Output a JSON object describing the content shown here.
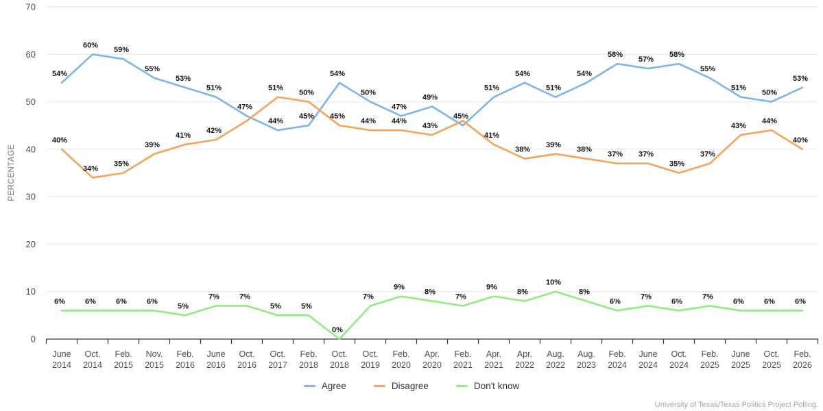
{
  "chart_data": {
    "type": "line",
    "title": "",
    "xlabel": "",
    "ylabel": "PERCENTAGE",
    "ylim": [
      0,
      70
    ],
    "yticks": [
      0,
      10,
      20,
      30,
      40,
      50,
      60,
      70
    ],
    "grid": true,
    "legend_position": "bottom",
    "categories": [
      [
        "June",
        "2014"
      ],
      [
        "Oct.",
        "2014"
      ],
      [
        "Feb.",
        "2015"
      ],
      [
        "Nov.",
        "2015"
      ],
      [
        "Feb.",
        "2016"
      ],
      [
        "June",
        "2016"
      ],
      [
        "Oct.",
        "2016"
      ],
      [
        "Oct.",
        "2017"
      ],
      [
        "Feb.",
        "2018"
      ],
      [
        "Oct.",
        "2018"
      ],
      [
        "Oct.",
        "2019"
      ],
      [
        "Feb.",
        "2020"
      ],
      [
        "Apr.",
        "2020"
      ],
      [
        "Feb.",
        "2021"
      ],
      [
        "Apr.",
        "2021"
      ],
      [
        "Apr.",
        "2022"
      ],
      [
        "Aug.",
        "2022"
      ],
      [
        "Aug.",
        "2023"
      ],
      [
        "Feb.",
        "2024"
      ],
      [
        "June",
        "2024"
      ],
      [
        "Oct.",
        "2024"
      ],
      [
        "Feb.",
        "2025"
      ],
      [
        "June",
        "2025"
      ],
      [
        "Oct.",
        "2025"
      ],
      [
        "Feb.",
        "2026"
      ]
    ],
    "series": [
      {
        "name": "Agree",
        "color": "#7cb5ec",
        "values": [
          54,
          60,
          59,
          55,
          53,
          51,
          47,
          44,
          45,
          54,
          50,
          47,
          49,
          45,
          51,
          54,
          51,
          54,
          58,
          57,
          58,
          55,
          51,
          50,
          53
        ],
        "labels": [
          "54%",
          "60%",
          "59%",
          "55%",
          "53%",
          "51%",
          "47%",
          "44%",
          "45%",
          "54%",
          "50%",
          "47%",
          "49%",
          "45%",
          "51%",
          "54%",
          "51%",
          "54%",
          "58%",
          "57%",
          "58%",
          "55%",
          "51%",
          "50%",
          "53%"
        ]
      },
      {
        "name": "Disagree",
        "color": "#f7a35c",
        "values": [
          40,
          34,
          35,
          39,
          41,
          42,
          46,
          51,
          50,
          45,
          44,
          44,
          43,
          46,
          41,
          38,
          39,
          38,
          37,
          37,
          35,
          37,
          43,
          44,
          40
        ],
        "labels": [
          "40%",
          "34%",
          "35%",
          "39%",
          "41%",
          "42%",
          "",
          "51%",
          "50%",
          "45%",
          "44%",
          "44%",
          "43%",
          "",
          "41%",
          "38%",
          "39%",
          "38%",
          "37%",
          "37%",
          "35%",
          "37%",
          "43%",
          "44%",
          "40%"
        ]
      },
      {
        "name": "Don't know",
        "color": "#90ed7d",
        "values": [
          6,
          6,
          6,
          6,
          5,
          7,
          7,
          5,
          5,
          0,
          7,
          9,
          8,
          7,
          9,
          8,
          10,
          8,
          6,
          7,
          6,
          7,
          6,
          6,
          6
        ],
        "labels": [
          "6%",
          "6%",
          "6%",
          "6%",
          "5%",
          "7%",
          "7%",
          "5%",
          "5%",
          "0%",
          "7%",
          "9%",
          "8%",
          "7%",
          "9%",
          "8%",
          "10%",
          "8%",
          "6%",
          "7%",
          "6%",
          "7%",
          "6%",
          "6%",
          "6%"
        ]
      }
    ]
  },
  "footer": {
    "source": "University of Texas/Texas Politics Project Polling."
  }
}
